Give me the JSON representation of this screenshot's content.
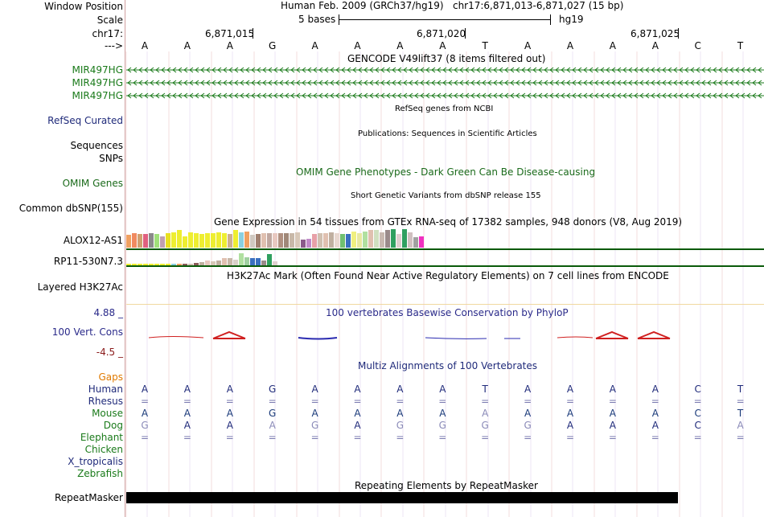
{
  "header": {
    "window_position_label": "Window Position",
    "scale_label": "Scale",
    "chrom_label": "chr17:",
    "arrow_label": "--->",
    "assembly": "Human Feb. 2009 (GRCh37/hg19)",
    "position": "chr17:6,871,013-6,871,027 (15 bp)",
    "scale_text": "5 bases",
    "db": "hg19",
    "coord_ticks": [
      "6,871,015",
      "6,871,020",
      "6,871,025"
    ]
  },
  "sequence": {
    "bases": [
      "A",
      "A",
      "A",
      "G",
      "A",
      "A",
      "A",
      "A",
      "T",
      "A",
      "A",
      "A",
      "A",
      "C",
      "T"
    ]
  },
  "tracks": {
    "gencode": {
      "title": "GENCODE V49lift37 (8 items filtered out)",
      "genes": [
        "MIR497HG",
        "MIR497HG",
        "MIR497HG"
      ],
      "color": "#1a7a1a"
    },
    "refseq": {
      "title": "RefSeq genes from NCBI",
      "label": "RefSeq Curated",
      "color": "#1f2a7a"
    },
    "publications": {
      "title": "Publications: Sequences in Scientific Articles",
      "label1": "Sequences",
      "label2": "SNPs"
    },
    "omim": {
      "title": "OMIM Gene Phenotypes - Dark Green Can Be Disease-causing",
      "label": "OMIM Genes",
      "color": "#1a6a1a"
    },
    "dbsnp": {
      "title": "Short Genetic Variants from dbSNP release 155",
      "label": "Common dbSNP(155)"
    },
    "gtex": {
      "title": "Gene Expression in 54 tissues from GTEx RNA-seq of 17382 samples, 948 donors (V8, Aug 2019)",
      "genes": [
        "ALOX12-AS1",
        "RP11-530N7.3"
      ]
    },
    "h3k27ac": {
      "title": "H3K27Ac Mark (Often Found Near Active Regulatory Elements) on 7 cell lines from ENCODE",
      "label": "Layered H3K27Ac"
    },
    "phylop": {
      "title": "100 vertebrates Basewise Conservation by PhyloP",
      "label": "100 Vert. Cons",
      "max": "4.88 _",
      "min": "-4.5 _",
      "color": "#2a2a8a",
      "min_color": "#8a1a1a"
    },
    "multiz": {
      "title": "Multiz Alignments of 100 Vertebrates",
      "gaps_label": "Gaps",
      "species": [
        "Human",
        "Rhesus",
        "Mouse",
        "Dog",
        "Elephant",
        "Chicken",
        "X_tropicalis",
        "Zebrafish"
      ],
      "rows": {
        "Human": [
          "A",
          "A",
          "A",
          "G",
          "A",
          "A",
          "A",
          "A",
          "T",
          "A",
          "A",
          "A",
          "A",
          "C",
          "T"
        ],
        "Rhesus": [
          "=",
          "=",
          "=",
          "=",
          "=",
          "=",
          "=",
          "=",
          "=",
          "=",
          "=",
          "=",
          "=",
          "=",
          "="
        ],
        "Mouse": [
          "A",
          "A",
          "A",
          "G",
          "A",
          "A",
          "A",
          "A",
          "A",
          "A",
          "A",
          "A",
          "A",
          "C",
          "T"
        ],
        "Dog": [
          "G",
          "A",
          "A",
          "A",
          "G",
          "A",
          "G",
          "G",
          "G",
          "G",
          "A",
          "A",
          "A",
          "C",
          "A"
        ],
        "Elephant": [
          "=",
          "=",
          "=",
          "=",
          "=",
          "=",
          "=",
          "=",
          "=",
          "=",
          "=",
          "=",
          "=",
          "=",
          "="
        ]
      }
    },
    "repeatmasker": {
      "title": "Repeating Elements by RepeatMasker",
      "label": "RepeatMasker"
    }
  },
  "gtex_bars": [
    {
      "c": "#f0a060",
      "v": 0.65
    },
    {
      "c": "#f08a60",
      "v": 0.75
    },
    {
      "c": "#d0a070",
      "v": 0.7
    },
    {
      "c": "#e06080",
      "v": 0.7
    },
    {
      "c": "#8a8a8a",
      "v": 0.75
    },
    {
      "c": "#a0e07a",
      "v": 0.7
    },
    {
      "c": "#c0a0b0",
      "v": 0.6
    },
    {
      "c": "#e8e020",
      "v": 0.75
    },
    {
      "c": "#eeee30",
      "v": 0.8
    },
    {
      "c": "#eeee30",
      "v": 0.9
    },
    {
      "c": "#eeee30",
      "v": 0.6
    },
    {
      "c": "#eeee30",
      "v": 0.8
    },
    {
      "c": "#eeee30",
      "v": 0.75
    },
    {
      "c": "#eeee30",
      "v": 0.7
    },
    {
      "c": "#eeee30",
      "v": 0.75
    },
    {
      "c": "#eeee30",
      "v": 0.75
    },
    {
      "c": "#eeee30",
      "v": 0.8
    },
    {
      "c": "#eeee30",
      "v": 0.75
    },
    {
      "c": "#ccb090",
      "v": 0.7
    },
    {
      "c": "#eeee30",
      "v": 0.9
    },
    {
      "c": "#8ad0e0",
      "v": 0.8
    },
    {
      "c": "#f0a060",
      "v": 0.85
    },
    {
      "c": "#d0c8c0",
      "v": 0.65
    },
    {
      "c": "#a08070",
      "v": 0.7
    },
    {
      "c": "#e0c0b0",
      "v": 0.75
    },
    {
      "c": "#c0a8a0",
      "v": 0.75
    },
    {
      "c": "#e8c8c0",
      "v": 0.75
    },
    {
      "c": "#b09080",
      "v": 0.75
    },
    {
      "c": "#a08878",
      "v": 0.75
    },
    {
      "c": "#c8b8a8",
      "v": 0.75
    },
    {
      "c": "#d8c8b8",
      "v": 0.8
    },
    {
      "c": "#8a5a8a",
      "v": 0.4
    },
    {
      "c": "#c08ac8",
      "v": 0.45
    },
    {
      "c": "#e8a0a8",
      "v": 0.7
    },
    {
      "c": "#d0c0b0",
      "v": 0.75
    },
    {
      "c": "#e0c0b0",
      "v": 0.75
    },
    {
      "c": "#c0b0a0",
      "v": 0.8
    },
    {
      "c": "#e8d8d0",
      "v": 0.75
    },
    {
      "c": "#70c070",
      "v": 0.7
    },
    {
      "c": "#3a70c0",
      "v": 0.7
    },
    {
      "c": "#f0f080",
      "v": 0.85
    },
    {
      "c": "#e8e8a0",
      "v": 0.75
    },
    {
      "c": "#b0e0a0",
      "v": 0.85
    },
    {
      "c": "#e0c0b0",
      "v": 0.9
    },
    {
      "c": "#d0e0c0",
      "v": 0.9
    },
    {
      "c": "#c8b8b0",
      "v": 0.8
    },
    {
      "c": "#9a8a8a",
      "v": 0.9
    },
    {
      "c": "#30a060",
      "v": 0.95
    },
    {
      "c": "#e0d0d0",
      "v": 0.7
    },
    {
      "c": "#30a060",
      "v": 0.95
    },
    {
      "c": "#d0c0c0",
      "v": 0.8
    },
    {
      "c": "#a0a0a0",
      "v": 0.55
    },
    {
      "c": "#f030c0",
      "v": 0.6
    }
  ],
  "gtex_bars2": [
    {
      "c": "#eeee30",
      "v": 0.1
    },
    {
      "c": "#eeee30",
      "v": 0.12
    },
    {
      "c": "#eeee30",
      "v": 0.1
    },
    {
      "c": "#eeee30",
      "v": 0.1
    },
    {
      "c": "#eeee30",
      "v": 0.1
    },
    {
      "c": "#eeee30",
      "v": 0.12
    },
    {
      "c": "#eeee30",
      "v": 0.1
    },
    {
      "c": "#eeee30",
      "v": 0.1
    },
    {
      "c": "#8ad0e0",
      "v": 0.15
    },
    {
      "c": "#f0a060",
      "v": 0.12
    },
    {
      "c": "#8a5a5a",
      "v": 0.1
    },
    {
      "c": "#d0c0b0",
      "v": 0.15
    },
    {
      "c": "#8a5a5a",
      "v": 0.2
    },
    {
      "c": "#c0b0a0",
      "v": 0.25
    },
    {
      "c": "#e8c8c0",
      "v": 0.35
    },
    {
      "c": "#d8c8b8",
      "v": 0.3
    },
    {
      "c": "#c0b0a0",
      "v": 0.4
    },
    {
      "c": "#e0c0b0",
      "v": 0.55
    },
    {
      "c": "#c8b8a8",
      "v": 0.55
    },
    {
      "c": "#d8d0c8",
      "v": 0.45
    },
    {
      "c": "#b0e0a0",
      "v": 0.95
    },
    {
      "c": "#a0d0a0",
      "v": 0.6
    },
    {
      "c": "#3a70c0",
      "v": 0.55
    },
    {
      "c": "#3a70c0",
      "v": 0.55
    },
    {
      "c": "#9a8a8a",
      "v": 0.4
    },
    {
      "c": "#30a060",
      "v": 0.85
    },
    {
      "c": "#e0d0d0",
      "v": 0.3
    }
  ],
  "colors": {
    "green": "#1a7a1a",
    "navy": "#1f2a7a",
    "orange": "#e07a00",
    "red": "#d01010",
    "dark_green_line": "#0a5a0a"
  }
}
